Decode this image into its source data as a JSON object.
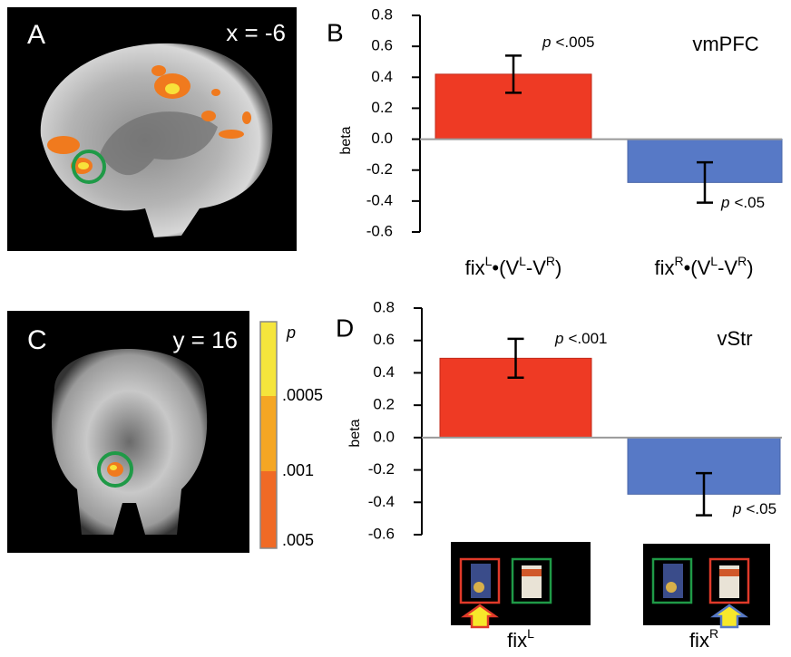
{
  "images": [
    {
      "label": "A",
      "coord": "x = -6"
    },
    {
      "label": "C",
      "coord": "y = 16"
    }
  ],
  "colorbar": {
    "title": "p",
    "labels": [
      ".0005",
      ".001",
      ".005"
    ]
  },
  "chart_data": [
    {
      "type": "bar",
      "panel": "B",
      "title": "vmPFC",
      "y_label": "beta",
      "categories": [
        [
          "fix",
          "L",
          "•(V",
          "L",
          "-V",
          "R",
          ")"
        ],
        [
          "fix",
          "R",
          "•(V",
          "L",
          "-V",
          "R",
          ")"
        ]
      ],
      "values": [
        0.42,
        -0.28
      ],
      "errors": [
        0.12,
        0.13
      ],
      "annotations": [
        [
          "p",
          "<.005"
        ],
        [
          "p",
          "<.05"
        ]
      ],
      "colors": [
        "#ee3a24",
        "#5779c6"
      ],
      "ylim": [
        -0.6,
        0.8
      ],
      "yticks": [
        -0.6,
        -0.4,
        -0.2,
        {
          "value": 0,
          "label": "0.0"
        },
        0.2,
        0.4,
        0.6,
        0.8
      ]
    },
    {
      "type": "bar",
      "panel": "D",
      "title": "vStr",
      "y_label": "beta",
      "categories": [
        [
          "fix",
          "L"
        ],
        [
          "fix",
          "R"
        ]
      ],
      "values": [
        0.49,
        -0.35
      ],
      "errors": [
        0.12,
        0.13
      ],
      "annotations": [
        [
          "p",
          "<.001"
        ],
        [
          "p",
          "<.05"
        ]
      ],
      "colors": [
        "#ee3a24",
        "#5779c6"
      ],
      "ylim": [
        -0.6,
        0.8
      ],
      "yticks": [
        -0.6,
        -0.4,
        -0.2,
        {
          "value": 0,
          "label": "0.0"
        },
        0.2,
        0.4,
        0.6,
        0.8
      ]
    }
  ]
}
